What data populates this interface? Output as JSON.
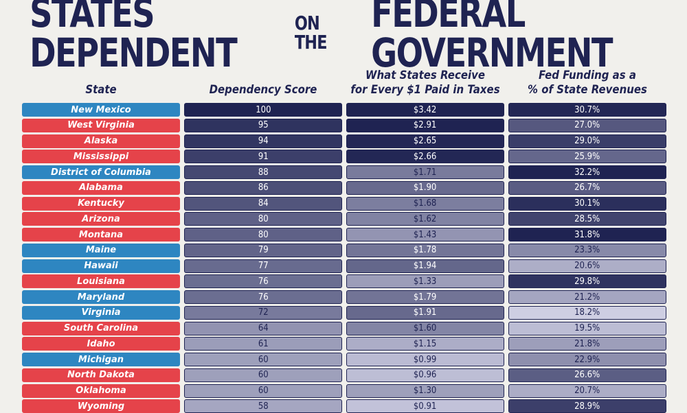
{
  "title": {
    "part1": "STATES DEPENDENT",
    "part2": "ON THE",
    "part3": "FEDERAL GOVERNMENT"
  },
  "colors": {
    "democrat": "#2e86c1",
    "republican": "#e5434a",
    "navy": "#1f2352",
    "background": "#f1f0ec"
  },
  "chart_data": {
    "type": "table",
    "columns": [
      "State",
      "Dependency Score",
      "What States Receive for Every $1 Paid in Taxes",
      "Fed Funding as a % of State Revenues"
    ],
    "rows": [
      {
        "state": "New Mexico",
        "party": "democrat",
        "score": "100",
        "ratio": "$3.42",
        "fed": "30.7%"
      },
      {
        "state": "West Virginia",
        "party": "republican",
        "score": "95",
        "ratio": "$2.91",
        "fed": "27.0%"
      },
      {
        "state": "Alaska",
        "party": "republican",
        "score": "94",
        "ratio": "$2.65",
        "fed": "29.0%"
      },
      {
        "state": "Mississippi",
        "party": "republican",
        "score": "91",
        "ratio": "$2.66",
        "fed": "25.9%"
      },
      {
        "state": "District of Columbia",
        "party": "democrat",
        "score": "88",
        "ratio": "$1.71",
        "fed": "32.2%"
      },
      {
        "state": "Alabama",
        "party": "republican",
        "score": "86",
        "ratio": "$1.90",
        "fed": "26.7%"
      },
      {
        "state": "Kentucky",
        "party": "republican",
        "score": "84",
        "ratio": "$1.68",
        "fed": "30.1%"
      },
      {
        "state": "Arizona",
        "party": "republican",
        "score": "80",
        "ratio": "$1.62",
        "fed": "28.5%"
      },
      {
        "state": "Montana",
        "party": "republican",
        "score": "80",
        "ratio": "$1.43",
        "fed": "31.8%"
      },
      {
        "state": "Maine",
        "party": "democrat",
        "score": "79",
        "ratio": "$1.78",
        "fed": "23.3%"
      },
      {
        "state": "Hawaii",
        "party": "democrat",
        "score": "77",
        "ratio": "$1.94",
        "fed": "20.6%"
      },
      {
        "state": "Louisiana",
        "party": "republican",
        "score": "76",
        "ratio": "$1.33",
        "fed": "29.8%"
      },
      {
        "state": "Maryland",
        "party": "democrat",
        "score": "76",
        "ratio": "$1.79",
        "fed": "21.2%"
      },
      {
        "state": "Virginia",
        "party": "democrat",
        "score": "72",
        "ratio": "$1.91",
        "fed": "18.2%"
      },
      {
        "state": "South Carolina",
        "party": "republican",
        "score": "64",
        "ratio": "$1.60",
        "fed": "19.5%"
      },
      {
        "state": "Idaho",
        "party": "republican",
        "score": "61",
        "ratio": "$1.15",
        "fed": "21.8%"
      },
      {
        "state": "Michigan",
        "party": "democrat",
        "score": "60",
        "ratio": "$0.99",
        "fed": "22.9%"
      },
      {
        "state": "North Dakota",
        "party": "republican",
        "score": "60",
        "ratio": "$0.96",
        "fed": "26.6%"
      },
      {
        "state": "Oklahoma",
        "party": "republican",
        "score": "60",
        "ratio": "$1.30",
        "fed": "20.7%"
      },
      {
        "state": "Wyoming",
        "party": "republican",
        "score": "58",
        "ratio": "$0.91",
        "fed": "28.9%"
      }
    ]
  }
}
